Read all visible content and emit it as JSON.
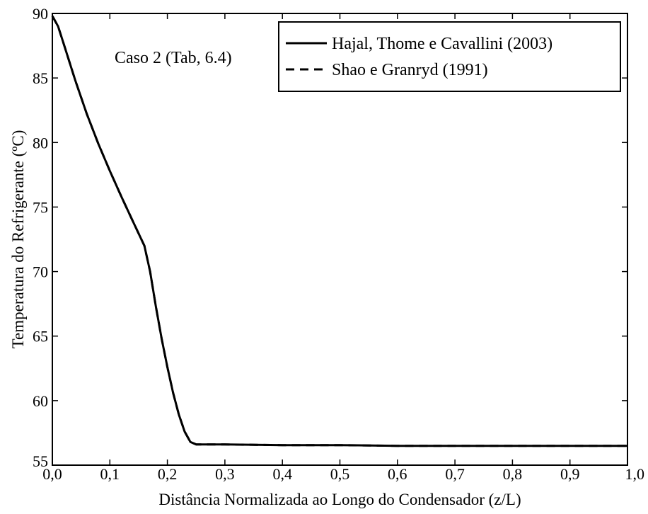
{
  "chart_data": {
    "type": "line",
    "title": "",
    "xlabel": "Distância Normalizada ao Longo do Condensador (z/L)",
    "ylabel": "Temperatura do Refrigerante (ºC)",
    "xlim": [
      0,
      1
    ],
    "ylim": [
      55,
      90
    ],
    "x_ticks": [
      {
        "value": 0.0,
        "label": "0,0"
      },
      {
        "value": 0.1,
        "label": "0,1"
      },
      {
        "value": 0.2,
        "label": "0,2"
      },
      {
        "value": 0.3,
        "label": "0,3"
      },
      {
        "value": 0.4,
        "label": "0,4"
      },
      {
        "value": 0.5,
        "label": "0,5"
      },
      {
        "value": 0.6,
        "label": "0,6"
      },
      {
        "value": 0.7,
        "label": "0,7"
      },
      {
        "value": 0.8,
        "label": "0,8"
      },
      {
        "value": 0.9,
        "label": "0,9"
      },
      {
        "value": 1.0,
        "label": "1,0"
      }
    ],
    "y_ticks": [
      {
        "value": 55,
        "label": "55"
      },
      {
        "value": 60,
        "label": "60"
      },
      {
        "value": 65,
        "label": "65"
      },
      {
        "value": 70,
        "label": "70"
      },
      {
        "value": 75,
        "label": "75"
      },
      {
        "value": 80,
        "label": "80"
      },
      {
        "value": 85,
        "label": "85"
      },
      {
        "value": 90,
        "label": "90"
      }
    ],
    "grid": false,
    "legend_position": "top-right",
    "annotation": "Caso 2 (Tab, 6.4)",
    "series": [
      {
        "name": "Hajal, Thome e Cavallini (2003)",
        "style": "solid",
        "color": "#000000",
        "x": [
          0.0,
          0.01,
          0.02,
          0.04,
          0.06,
          0.08,
          0.1,
          0.12,
          0.14,
          0.16,
          0.17,
          0.18,
          0.19,
          0.2,
          0.21,
          0.22,
          0.23,
          0.24,
          0.25,
          0.26,
          0.3,
          0.4,
          0.5,
          0.6,
          0.7,
          0.8,
          0.9,
          1.0
        ],
        "y": [
          89.8,
          89.0,
          87.6,
          84.8,
          82.2,
          79.9,
          77.8,
          75.8,
          73.9,
          72.0,
          70.0,
          67.3,
          64.8,
          62.6,
          60.6,
          58.9,
          57.6,
          56.8,
          56.6,
          56.6,
          56.6,
          56.55,
          56.55,
          56.5,
          56.5,
          56.5,
          56.5,
          56.5
        ]
      },
      {
        "name": "Shao e Granryd (1991)",
        "style": "dashed",
        "color": "#000000",
        "x": [
          0.0,
          0.01,
          0.02,
          0.04,
          0.06,
          0.08,
          0.1,
          0.12,
          0.14,
          0.16,
          0.17,
          0.18,
          0.19,
          0.2,
          0.21,
          0.22,
          0.23,
          0.24,
          0.25,
          0.26,
          0.3,
          0.4,
          0.5,
          0.6,
          0.7,
          0.8,
          0.9,
          1.0
        ],
        "y": [
          89.8,
          89.0,
          87.6,
          84.8,
          82.2,
          79.9,
          77.8,
          75.8,
          73.9,
          72.0,
          70.0,
          67.3,
          64.8,
          62.6,
          60.6,
          58.9,
          57.6,
          56.8,
          56.6,
          56.6,
          56.6,
          56.55,
          56.55,
          56.5,
          56.5,
          56.5,
          56.5,
          56.5
        ]
      }
    ]
  }
}
